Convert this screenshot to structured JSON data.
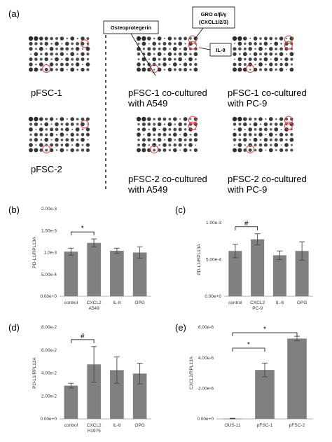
{
  "panel_a": {
    "letter": "(a)",
    "blots": [
      {
        "label_lines": [
          "pFSC-1"
        ]
      },
      {
        "label_lines": [
          "pFSC-2"
        ]
      },
      {
        "label_lines": [
          "pFSC-1 co-cultured",
          "with A549"
        ]
      },
      {
        "label_lines": [
          "pFSC-1 co-cultured",
          "with PC-9"
        ]
      },
      {
        "label_lines": [
          "pFSC-2 co-cultured",
          "with A549"
        ]
      },
      {
        "label_lines": [
          "pFSC-2 co-cultured",
          "with PC-9"
        ]
      }
    ],
    "callouts": {
      "osteoprotegerin": "Osteoprotegerin",
      "gro_line1": "GRO α/β/γ",
      "gro_line2": "(CXCL1/2/3)",
      "il8": "IL-8"
    },
    "highlight_color": "#e04040"
  },
  "chart_data": [
    {
      "panel": "(b)",
      "type": "bar",
      "categories": [
        "control",
        "CXCL2",
        "IL-8",
        "OPG"
      ],
      "values": [
        0.00102,
        0.00122,
        0.00104,
        0.001
      ],
      "errors": [
        8e-05,
        9e-05,
        6e-05,
        0.00013
      ],
      "ylim": [
        0,
        0.002
      ],
      "yticks": [
        "0.00e+0",
        "5.00e-4",
        "1.0e-3",
        "1.50e-3",
        "2.00e-3"
      ],
      "ylabel": "PD-L1/RPL13A",
      "xlabel": "A549",
      "significance": [
        {
          "mark": "*",
          "from": 0,
          "to": 1
        }
      ]
    },
    {
      "panel": "(c)",
      "type": "bar",
      "categories": [
        "control",
        "CXCL2",
        "IL-8",
        "OPG"
      ],
      "values": [
        0.00074,
        0.00093,
        0.00067,
        0.00074
      ],
      "errors": [
        0.00011,
        9e-05,
        7e-05,
        0.00015
      ],
      "ylim": [
        0,
        0.0012
      ],
      "yticks": [
        "0.00e+0",
        "5.00e-4",
        "1.00e-3"
      ],
      "ylabel": "PD-L1/RPL13A",
      "xlabel": "PC-9",
      "significance": [
        {
          "mark": "#",
          "from": 0,
          "to": 1
        }
      ]
    },
    {
      "panel": "(d)",
      "type": "bar",
      "categories": [
        "control",
        "CXCL2",
        "IL-8",
        "OPG"
      ],
      "values": [
        0.029,
        0.0475,
        0.0425,
        0.0395
      ],
      "errors": [
        0.002,
        0.0155,
        0.0115,
        0.009
      ],
      "ylim": [
        0,
        0.08
      ],
      "yticks": [
        "0.00e+0",
        "2.00e-2",
        "4.00e-2",
        "6.00e-2",
        "8.00e-2"
      ],
      "ylabel": "PD-L1/RPL13A",
      "xlabel": "H1975",
      "significance": [
        {
          "mark": "#",
          "from": 0,
          "to": 1
        }
      ]
    },
    {
      "panel": "(e)",
      "type": "bar",
      "categories": [
        "OUS-11",
        "pFSC-1",
        "pFSC-2"
      ],
      "values": [
        2e-08,
        3.2e-06,
        5.25e-06
      ],
      "errors": [
        2e-08,
        4.5e-07,
        1.5e-07
      ],
      "ylim": [
        0,
        6e-06
      ],
      "yticks": [
        "0.00e+0",
        "2.00e-6",
        "4.00e-6",
        "6.00e-6"
      ],
      "ylabel": "CXCL2/RPL13A",
      "xlabel": "",
      "significance": [
        {
          "mark": "*",
          "from": 0,
          "to": 1
        },
        {
          "mark": "*",
          "from": 0,
          "to": 2
        }
      ]
    }
  ]
}
